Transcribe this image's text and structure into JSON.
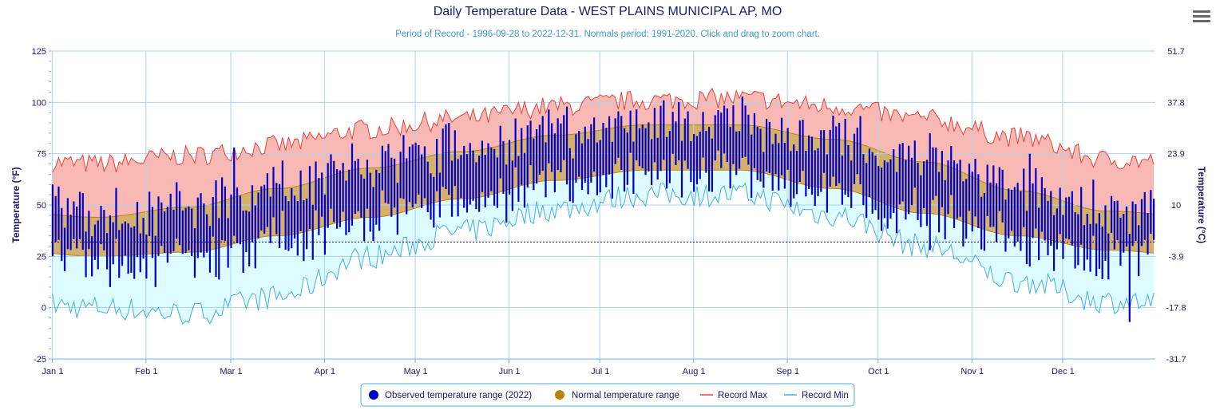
{
  "title": "Daily Temperature Data - WEST PLAINS MUNICIPAL AP, MO",
  "subtitle": "Period of Record - 1996-09-28 to 2022-12-31. Normals period: 1991-2020. Click and drag to zoom chart.",
  "menu_icon": "hamburger-menu-icon",
  "colors": {
    "title": "#1a1a6e",
    "subtitle": "#3e9bd4",
    "observed": "#0000cc",
    "normal_fill": "#d4b06a",
    "normal_line": "#b8860b",
    "record_max_fill": "#f8b9b4",
    "record_max_line": "#e8403a",
    "record_min_fill": "#dcfcff",
    "record_min_line": "#45aee8",
    "grid": "#a9d4ef",
    "axis_text": "#1a1a6e"
  },
  "chart_data": {
    "type": "area",
    "title": "Daily Temperature Data - WEST PLAINS MUNICIPAL AP, MO",
    "ylabel_left": "Temperature (°F)",
    "ylabel_right": "Temperature (°C)",
    "ylim": [
      -25,
      125
    ],
    "yticks_left": [
      "125",
      "100",
      "75",
      "50",
      "25",
      "0",
      "-25"
    ],
    "yticks_right": [
      "51.7",
      "37.8",
      "23.9",
      "10",
      "-3.9",
      "-17.8",
      "-31.7"
    ],
    "x_tick_labels": [
      "Jan 1",
      "Feb 1",
      "Mar 1",
      "Apr 1",
      "May 1",
      "Jun 1",
      "Jul 1",
      "Aug 1",
      "Sep 1",
      "Oct 1",
      "Nov 1",
      "Dec 1"
    ],
    "x_tick_days": [
      0,
      31,
      59,
      90,
      120,
      151,
      181,
      212,
      243,
      273,
      304,
      334
    ],
    "days_in_year": 365,
    "grid": true,
    "freezing_line": 32,
    "legend_position": "bottom-center",
    "legend": {
      "observed": "Observed temperature range (2022)",
      "normal": "Normal temperature range",
      "record_max": "Record Max",
      "record_min": "Record Min"
    },
    "series_monthly": {
      "months": [
        "Jan",
        "Feb",
        "Mar",
        "Apr",
        "May",
        "Jun",
        "Jul",
        "Aug",
        "Sep",
        "Oct",
        "Nov",
        "Dec"
      ],
      "record_max": [
        70,
        74,
        79,
        87,
        92,
        98,
        101,
        102,
        98,
        92,
        83,
        72
      ],
      "normal_max": [
        44,
        49,
        58,
        68,
        76,
        84,
        89,
        89,
        82,
        71,
        57,
        47
      ],
      "normal_min": [
        25,
        27,
        35,
        44,
        53,
        62,
        67,
        67,
        58,
        46,
        35,
        28
      ],
      "record_min": [
        0,
        -3,
        5,
        25,
        37,
        48,
        55,
        55,
        45,
        30,
        13,
        3
      ]
    },
    "observed_2022_samples": [
      {
        "date": "Jan 1",
        "high": 60,
        "low": 25
      },
      {
        "date": "Jan 20",
        "high": 45,
        "low": 10
      },
      {
        "date": "Feb 4",
        "high": 35,
        "low": 10
      },
      {
        "date": "Feb 24",
        "high": 62,
        "low": 15
      },
      {
        "date": "Mar 2",
        "high": 78,
        "low": 35
      },
      {
        "date": "Apr 10",
        "high": 80,
        "low": 40
      },
      {
        "date": "May 12",
        "high": 90,
        "low": 55
      },
      {
        "date": "Jun 20",
        "high": 98,
        "low": 60
      },
      {
        "date": "Jul 22",
        "high": 101,
        "low": 72
      },
      {
        "date": "Aug 10",
        "high": 95,
        "low": 68
      },
      {
        "date": "Sep 20",
        "high": 92,
        "low": 55
      },
      {
        "date": "Oct 18",
        "high": 85,
        "low": 28
      },
      {
        "date": "Nov 20",
        "high": 75,
        "low": 20
      },
      {
        "date": "Dec 23",
        "high": 36,
        "low": -7
      },
      {
        "date": "Dec 31",
        "high": 53,
        "low": 33
      }
    ]
  }
}
